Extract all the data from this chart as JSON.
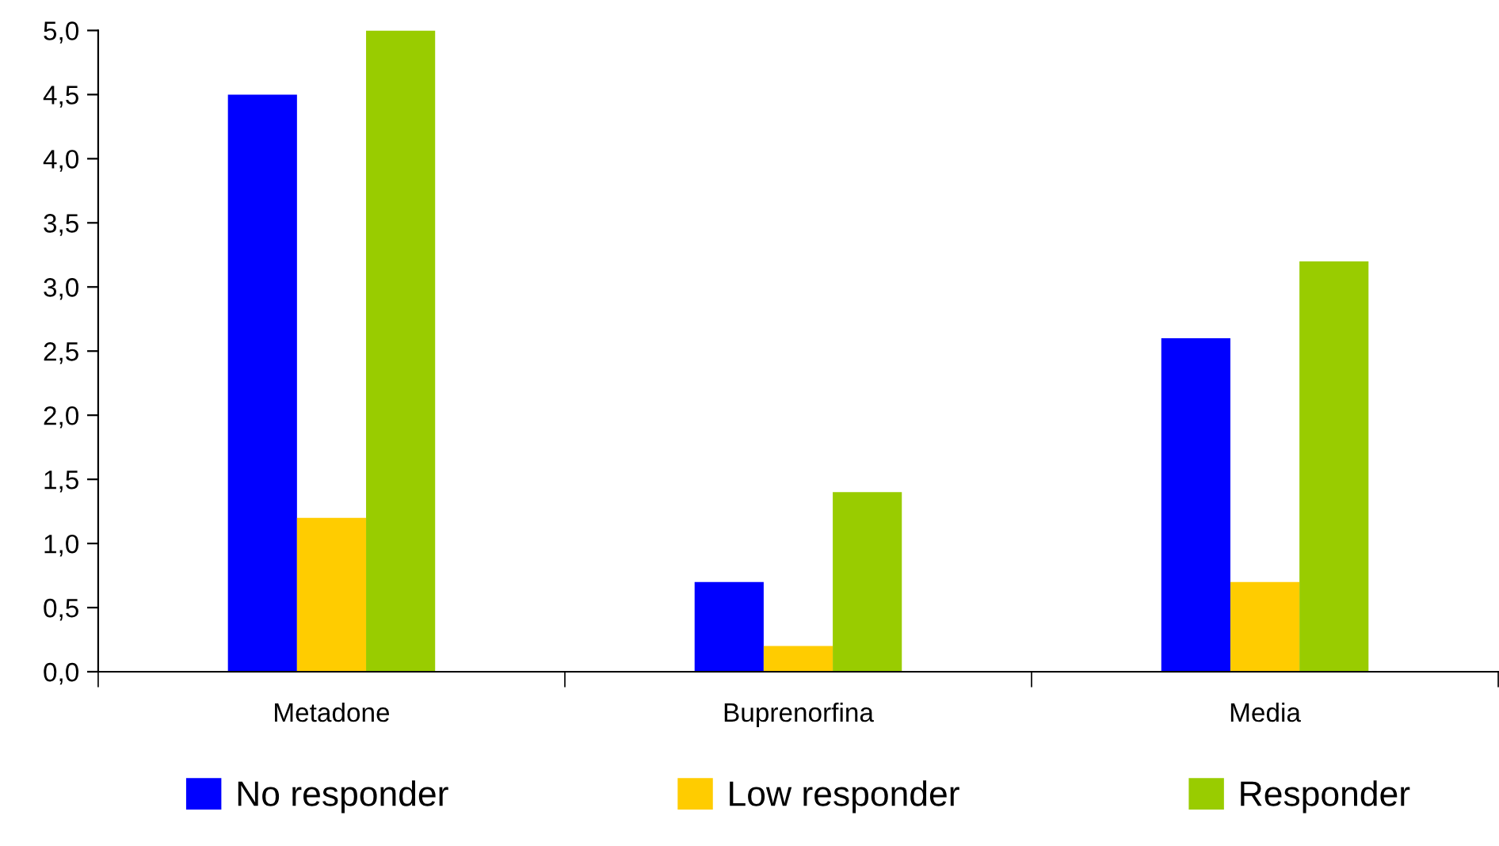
{
  "chart_data": {
    "type": "bar",
    "categories": [
      "Metadone",
      "Buprenorfina",
      "Media"
    ],
    "series": [
      {
        "name": "No responder",
        "color": "#0000ff",
        "values": [
          4.5,
          0.7,
          2.6
        ]
      },
      {
        "name": "Low responder",
        "color": "#ffcc00",
        "values": [
          1.2,
          0.2,
          0.7
        ]
      },
      {
        "name": "Responder",
        "color": "#99cc00",
        "values": [
          5.0,
          1.4,
          3.2
        ]
      }
    ],
    "ylim": [
      0,
      5
    ],
    "yticks": [
      {
        "value": 0,
        "label": "0,0"
      },
      {
        "value": 0.5,
        "label": "0,5"
      },
      {
        "value": 1,
        "label": "1,0"
      },
      {
        "value": 1.5,
        "label": "1,5"
      },
      {
        "value": 2,
        "label": "2,0"
      },
      {
        "value": 2.5,
        "label": "2,5"
      },
      {
        "value": 3,
        "label": "3,0"
      },
      {
        "value": 3.5,
        "label": "3,5"
      },
      {
        "value": 4,
        "label": "4,0"
      },
      {
        "value": 4.5,
        "label": "4,5"
      },
      {
        "value": 5,
        "label": "5,0"
      }
    ],
    "grid": false,
    "legend": "bottom"
  }
}
